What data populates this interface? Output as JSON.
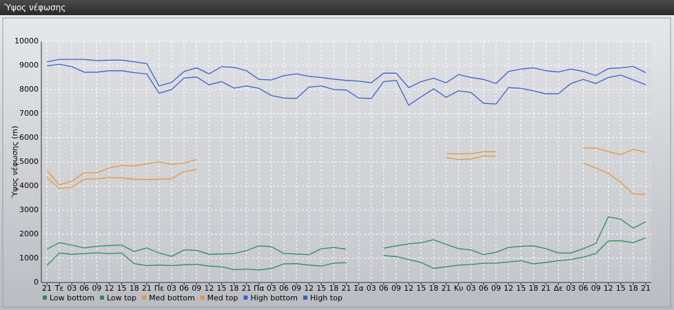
{
  "window_title": "Ύψος νέφωσης",
  "chart_data": {
    "type": "line",
    "y_label": "Ύψος νέφωσης (m)",
    "categories": [
      "21",
      "Τε",
      "03",
      "06",
      "09",
      "12",
      "15",
      "18",
      "21",
      "Πε",
      "03",
      "06",
      "09",
      "12",
      "15",
      "18",
      "21",
      "Πα",
      "03",
      "06",
      "09",
      "12",
      "15",
      "18",
      "21",
      "Σα",
      "03",
      "06",
      "09",
      "12",
      "15",
      "18",
      "21",
      "Κυ",
      "03",
      "06",
      "09",
      "12",
      "15",
      "18",
      "21",
      "Δε",
      "03",
      "06",
      "09",
      "12",
      "15",
      "18",
      "21"
    ],
    "ylim": [
      0,
      10000
    ],
    "yticks": [
      0,
      1000,
      2000,
      3000,
      4000,
      5000,
      6000,
      7000,
      8000,
      9000,
      10000
    ],
    "grid": true,
    "series": [
      {
        "name": "Low bottom",
        "color": "#2e8b57",
        "values": [
          700,
          1220,
          1170,
          1200,
          1230,
          1200,
          1220,
          780,
          700,
          720,
          700,
          730,
          750,
          680,
          650,
          530,
          550,
          520,
          580,
          770,
          780,
          720,
          680,
          800,
          820,
          null,
          null,
          1120,
          1070,
          950,
          830,
          580,
          650,
          720,
          740,
          800,
          800,
          850,
          900,
          770,
          830,
          900,
          950,
          1050,
          1200,
          1720,
          1730,
          1650,
          1850
        ]
      },
      {
        "name": "Low top",
        "color": "#2e8b57",
        "values": [
          1380,
          1650,
          1550,
          1430,
          1500,
          1530,
          1550,
          1280,
          1430,
          1220,
          1080,
          1350,
          1330,
          1170,
          1180,
          1200,
          1320,
          1520,
          1480,
          1200,
          1180,
          1150,
          1400,
          1450,
          1380,
          null,
          null,
          1420,
          1520,
          1600,
          1650,
          1770,
          1580,
          1400,
          1350,
          1150,
          1250,
          1450,
          1500,
          1520,
          1400,
          1220,
          1220,
          1400,
          1620,
          2720,
          2620,
          2250,
          2520
        ]
      },
      {
        "name": "Med bottom",
        "color": "#e8943a",
        "values": [
          4350,
          3900,
          3950,
          4280,
          4300,
          4350,
          4330,
          4280,
          4270,
          4280,
          4300,
          4600,
          4680,
          null,
          null,
          null,
          null,
          null,
          null,
          null,
          null,
          null,
          null,
          null,
          null,
          null,
          null,
          null,
          null,
          null,
          null,
          null,
          5180,
          5100,
          5120,
          5250,
          5230,
          null,
          null,
          null,
          null,
          null,
          null,
          4950,
          4750,
          4520,
          4150,
          3670,
          3650
        ]
      },
      {
        "name": "Med top",
        "color": "#e8943a",
        "values": [
          4650,
          4050,
          4200,
          4550,
          4550,
          4750,
          4850,
          4830,
          4920,
          5000,
          4900,
          4950,
          5100,
          null,
          null,
          null,
          null,
          null,
          null,
          null,
          null,
          null,
          null,
          null,
          null,
          null,
          null,
          null,
          null,
          null,
          null,
          null,
          5350,
          5330,
          5340,
          5420,
          5420,
          null,
          null,
          null,
          null,
          null,
          null,
          5580,
          5570,
          5430,
          5300,
          5520,
          5400
        ]
      },
      {
        "name": "High bottom",
        "color": "#3a5fcd",
        "values": [
          8980,
          9050,
          8950,
          8720,
          8720,
          8780,
          8780,
          8700,
          8650,
          7850,
          8000,
          8480,
          8520,
          8200,
          8330,
          8060,
          8150,
          8050,
          7750,
          7650,
          7630,
          8100,
          8150,
          8000,
          7980,
          7650,
          7630,
          8330,
          8380,
          7350,
          7700,
          8030,
          7680,
          7950,
          7880,
          7430,
          7400,
          8080,
          8050,
          7950,
          7820,
          7830,
          8250,
          8420,
          8250,
          8500,
          8600,
          8400,
          8200
        ]
      },
      {
        "name": "High top",
        "color": "#3a5fcd",
        "values": [
          9150,
          9250,
          9250,
          9250,
          9200,
          9220,
          9220,
          9150,
          9080,
          8150,
          8300,
          8750,
          8900,
          8650,
          8950,
          8920,
          8780,
          8420,
          8400,
          8580,
          8650,
          8550,
          8500,
          8430,
          8380,
          8350,
          8280,
          8680,
          8680,
          8080,
          8330,
          8470,
          8280,
          8620,
          8500,
          8420,
          8250,
          8750,
          8850,
          8900,
          8780,
          8730,
          8850,
          8750,
          8580,
          8870,
          8900,
          8960,
          8700
        ]
      }
    ]
  }
}
